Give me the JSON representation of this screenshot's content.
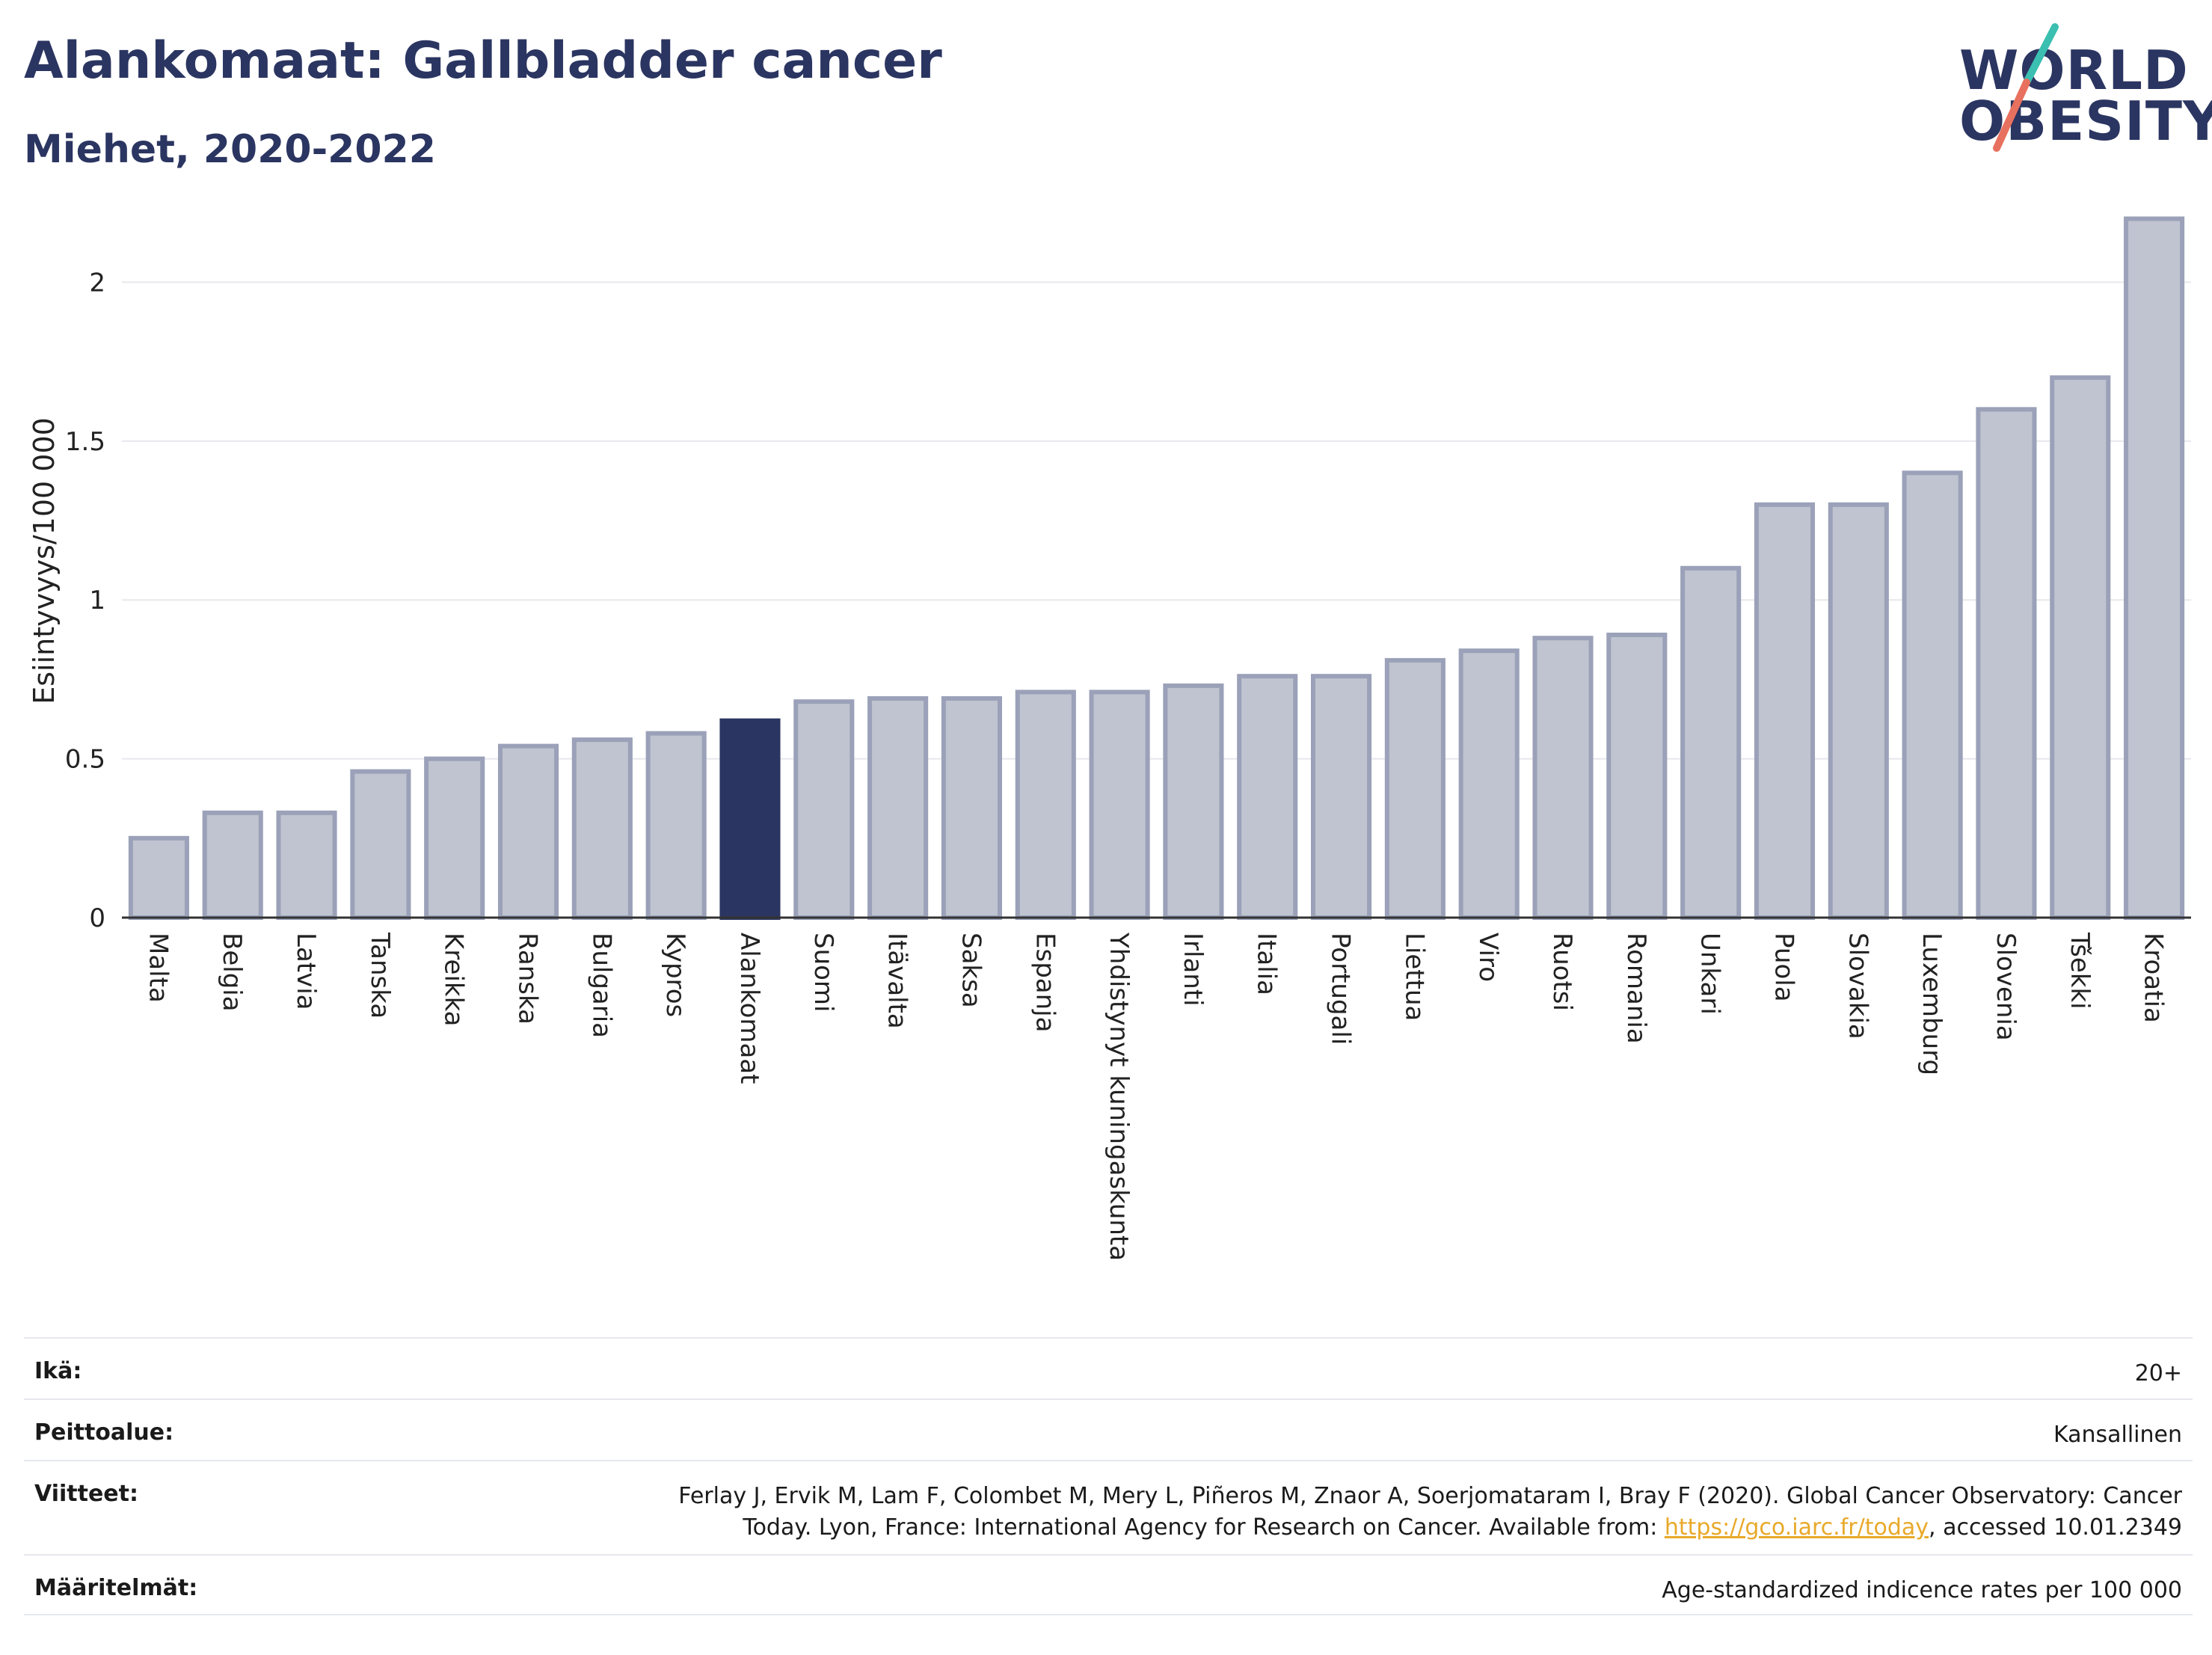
{
  "header": {
    "title": "Alankomaat: Gallbladder cancer",
    "subtitle": "Miehet, 2020-2022"
  },
  "logo": {
    "line1": "WORLD",
    "line2": "OBESITY",
    "colors": {
      "text": "#2b3561",
      "slash_top": "#3bbfb0",
      "slash_bottom": "#e8705e"
    }
  },
  "chart_data": {
    "type": "bar",
    "ylabel": "Esiintyvyys/100 000",
    "ylim": [
      0,
      2.3
    ],
    "yticks": [
      0,
      0.5,
      1,
      1.5,
      2
    ],
    "ytick_labels": [
      "0",
      "0.5",
      "1",
      "1.5",
      "2"
    ],
    "grid": true,
    "highlight": "Alankomaat",
    "colors": {
      "bar": "#c0c4d0",
      "bar_edge": "#9aa1b8",
      "highlight": "#2b3561",
      "grid": "#e8e8ee",
      "axis": "#333333"
    },
    "categories": [
      "Malta",
      "Belgia",
      "Latvia",
      "Tanska",
      "Kreikka",
      "Ranska",
      "Bulgaria",
      "Kypros",
      "Alankomaat",
      "Suomi",
      "Itävalta",
      "Saksa",
      "Espanja",
      "Yhdistynyt kuningaskunta",
      "Irlanti",
      "Italia",
      "Portugali",
      "Liettua",
      "Viro",
      "Ruotsi",
      "Romania",
      "Unkari",
      "Puola",
      "Slovakia",
      "Luxemburg",
      "Slovenia",
      "Tšekki",
      "Kroatia"
    ],
    "values": [
      0.25,
      0.33,
      0.33,
      0.46,
      0.5,
      0.54,
      0.56,
      0.58,
      0.62,
      0.68,
      0.69,
      0.69,
      0.71,
      0.71,
      0.73,
      0.76,
      0.76,
      0.81,
      0.84,
      0.88,
      0.89,
      1.1,
      1.3,
      1.3,
      1.4,
      1.6,
      1.7,
      2.2
    ]
  },
  "meta": {
    "age_label": "Ikä:",
    "age_value": "20+",
    "coverage_label": "Peittoalue:",
    "coverage_value": "Kansallinen",
    "refs_label": "Viitteet:",
    "refs_line1": "Ferlay J, Ervik M, Lam F, Colombet M, Mery L, Piñeros M, Znaor A, Soerjomataram I, Bray F (2020). Global Cancer Observatory: Cancer",
    "refs_line2_pre": "Today. Lyon, France: International Agency for Research on Cancer. Available from: ",
    "refs_link": "https://gco.iarc.fr/today",
    "refs_line2_post": ", accessed 10.01.2349",
    "defs_label": "Määritelmät:",
    "defs_value": "Age-standardized indicence rates per 100 000"
  }
}
